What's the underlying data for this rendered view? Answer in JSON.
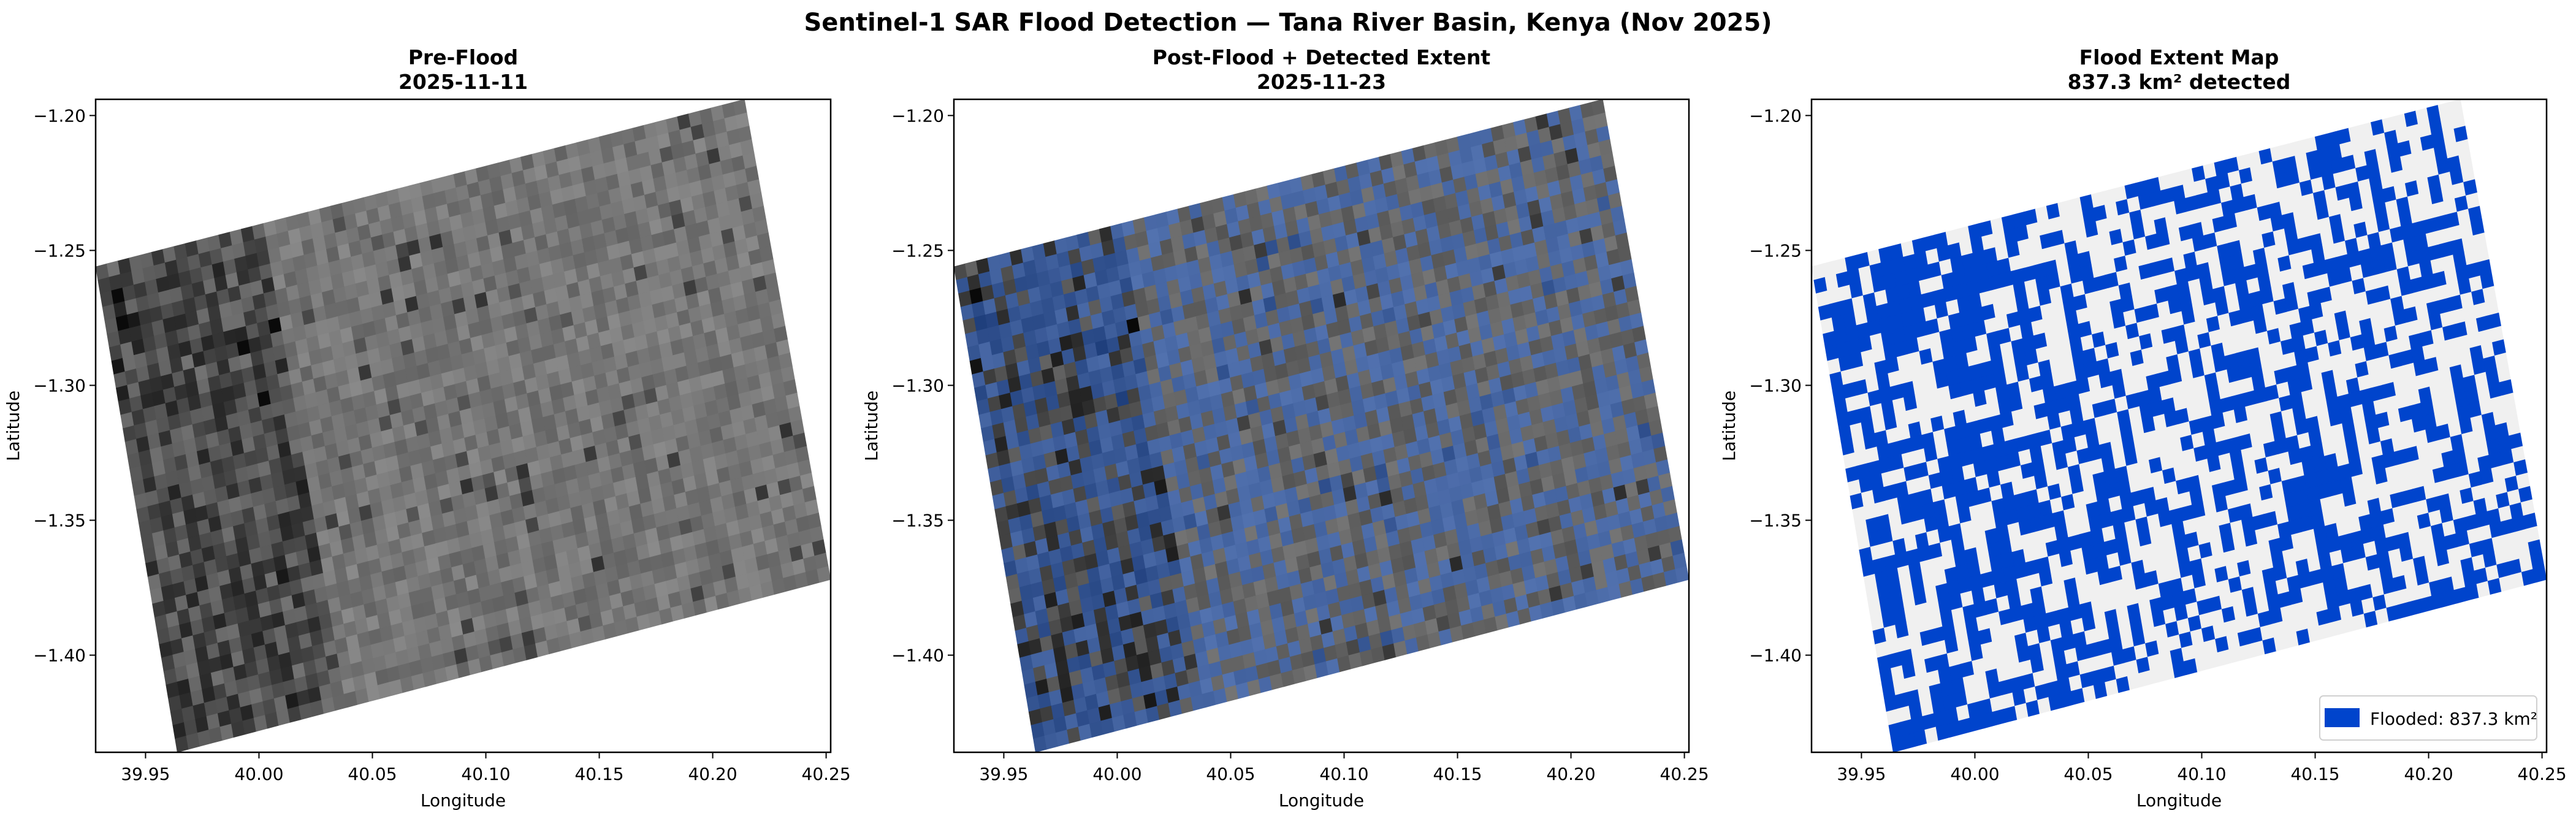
{
  "figure": {
    "title": "Sentinel-1 SAR Flood Detection — Tana River Basin, Kenya (Nov 2025)"
  },
  "colors": {
    "flooded": "#0044cc",
    "overlay": "#2d62c8",
    "dry": "#f0f0f0",
    "background": "#ffffff"
  },
  "chart_data": [
    {
      "type": "heatmap",
      "title": "Pre-Flood",
      "subtitle": "2025-11-11",
      "xlabel": "Longitude",
      "ylabel": "Latitude",
      "colormap": "gray",
      "xlim": [
        39.928,
        40.252
      ],
      "ylim": [
        -1.436,
        -1.194
      ],
      "xticks": [
        "39.95",
        "40.00",
        "40.05",
        "40.10",
        "40.15",
        "40.20",
        "40.25"
      ],
      "yticks": [
        "-1.20",
        "-1.25",
        "-1.30",
        "-1.35",
        "-1.40"
      ],
      "extent_corners": {
        "top_left": [
          39.928,
          -1.256
        ],
        "top_right": [
          40.214,
          -1.194
        ],
        "bottom_right": [
          40.252,
          -1.372
        ],
        "bottom_left": [
          39.964,
          -1.436
        ]
      }
    },
    {
      "type": "heatmap",
      "title": "Post-Flood + Detected Extent",
      "subtitle": "2025-11-23",
      "xlabel": "Longitude",
      "ylabel": "Latitude",
      "colormap": "gray with blue flood overlay",
      "xlim": [
        39.928,
        40.252
      ],
      "ylim": [
        -1.436,
        -1.194
      ],
      "xticks": [
        "39.95",
        "40.00",
        "40.05",
        "40.10",
        "40.15",
        "40.20",
        "40.25"
      ],
      "yticks": [
        "-1.20",
        "-1.25",
        "-1.30",
        "-1.35",
        "-1.40"
      ],
      "extent_corners": {
        "top_left": [
          39.928,
          -1.256
        ],
        "top_right": [
          40.214,
          -1.194
        ],
        "bottom_right": [
          40.252,
          -1.372
        ],
        "bottom_left": [
          39.964,
          -1.436
        ]
      }
    },
    {
      "type": "heatmap",
      "title": "Flood Extent Map",
      "subtitle": "837.3 km² detected",
      "xlabel": "Longitude",
      "ylabel": "Latitude",
      "colormap": "binary blue/light grey",
      "xlim": [
        39.928,
        40.252
      ],
      "ylim": [
        -1.436,
        -1.194
      ],
      "xticks": [
        "39.95",
        "40.00",
        "40.05",
        "40.10",
        "40.15",
        "40.20",
        "40.25"
      ],
      "yticks": [
        "-1.20",
        "-1.25",
        "-1.30",
        "-1.35",
        "-1.40"
      ],
      "extent_corners": {
        "top_left": [
          39.928,
          -1.256
        ],
        "top_right": [
          40.214,
          -1.194
        ],
        "bottom_right": [
          40.252,
          -1.372
        ],
        "bottom_left": [
          39.964,
          -1.436
        ]
      },
      "flooded_area_km2": 837.3,
      "legend": {
        "label": "Flooded: 837.3 km²",
        "position": "lower right"
      }
    }
  ]
}
